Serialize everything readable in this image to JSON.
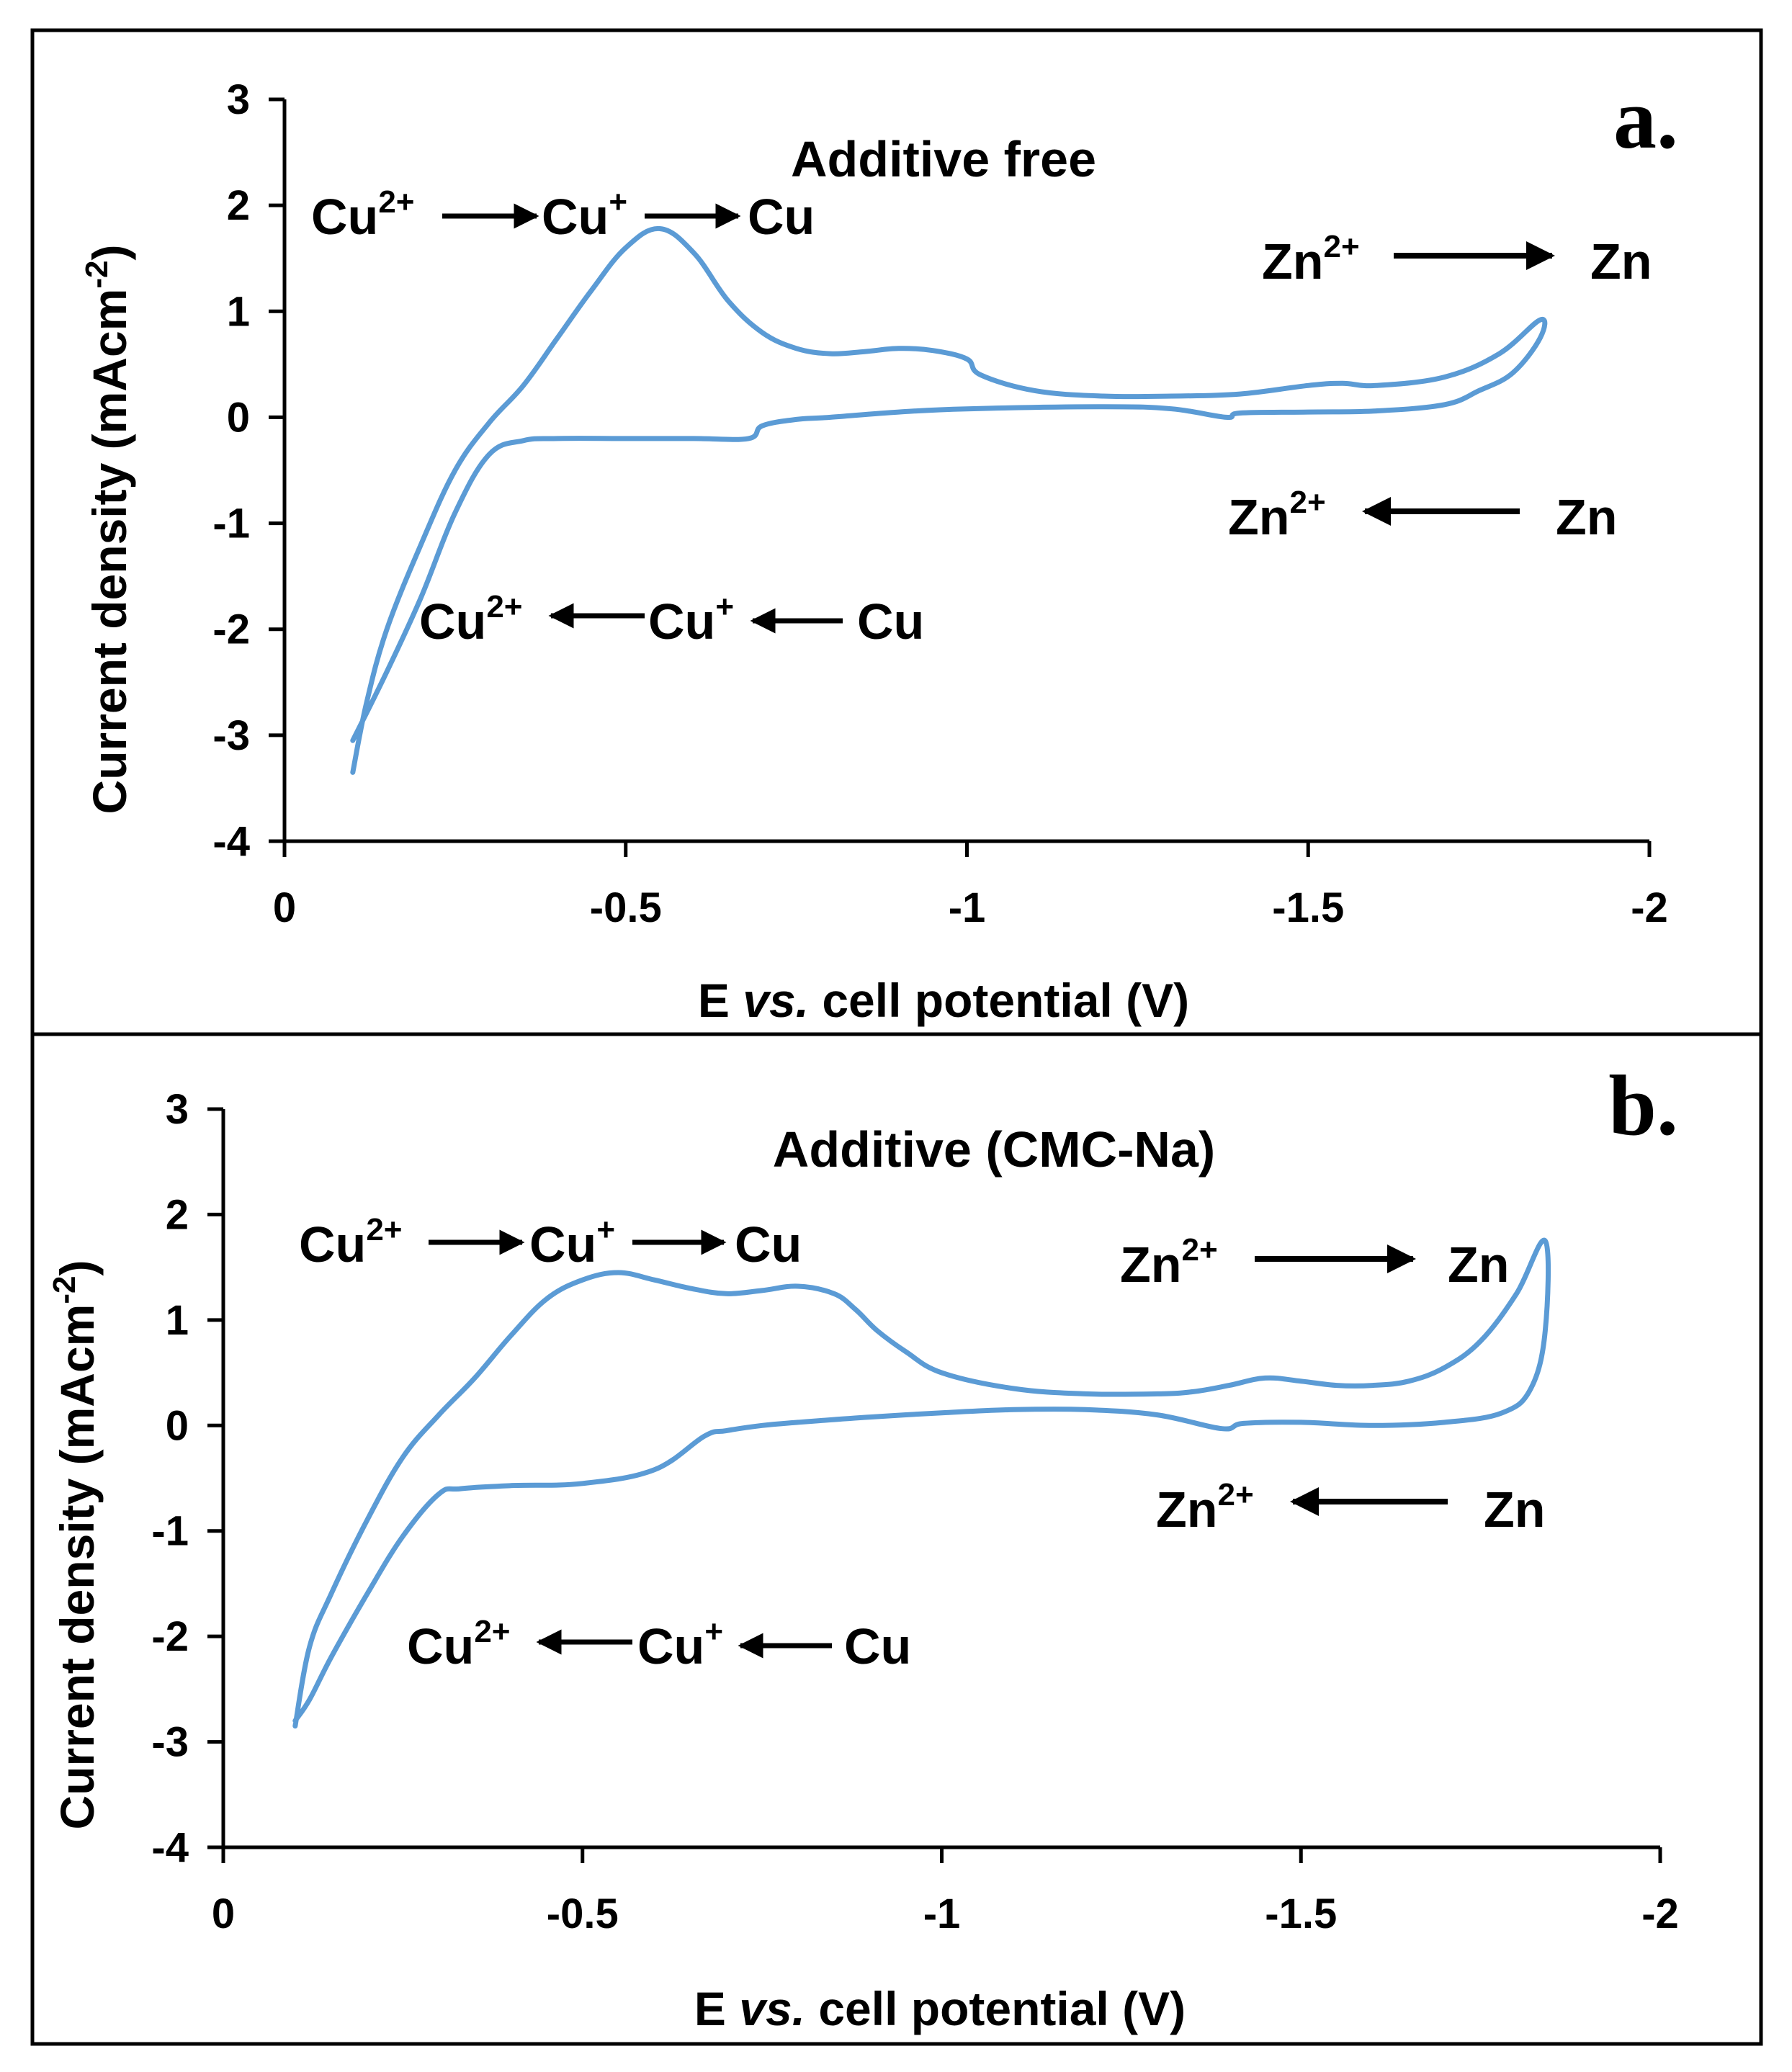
{
  "chart_data": [
    {
      "type": "line",
      "panel_label": "a.",
      "title": "Additive free",
      "xlabel_parts": [
        "E ",
        "vs.",
        " cell potential (V)"
      ],
      "ylabel": "Current density (mAcm",
      "ylabel_sup": "-2",
      "ylabel_close": ")",
      "xlim": [
        0,
        -2
      ],
      "ylim": [
        -4,
        3
      ],
      "x_ticks": [
        "0",
        "-0.5",
        "-1",
        "-1.5",
        "-2"
      ],
      "x_tick_values": [
        0,
        -0.5,
        -1,
        -1.5,
        -2
      ],
      "y_ticks": [
        "3",
        "2",
        "1",
        "0",
        "-1",
        "-2",
        "-3",
        "-4"
      ],
      "y_tick_values": [
        3,
        2,
        1,
        0,
        -1,
        -2,
        -3,
        -4
      ],
      "line_color": "#5b9bd5",
      "series": [
        {
          "x": [
            -0.1,
            -0.12,
            -0.15,
            -0.2,
            -0.25,
            -0.3,
            -0.35,
            -0.4,
            -0.45,
            -0.5,
            -0.55,
            -0.6,
            -0.65,
            -0.7,
            -0.75,
            -0.8,
            -0.85,
            -0.9,
            -0.95,
            -1.0,
            -1.02,
            -1.1,
            -1.2,
            -1.3,
            -1.4,
            -1.5,
            -1.55,
            -1.6,
            -1.7,
            -1.78,
            -1.84,
            -1.84,
            -1.8,
            -1.75,
            -1.7,
            -1.6,
            -1.5,
            -1.4,
            -1.38,
            -1.3,
            -1.2,
            -1.0,
            -0.9,
            -0.8,
            -0.75,
            -0.7,
            -0.68,
            -0.6,
            -0.5,
            -0.4,
            -0.35,
            -0.3,
            -0.25,
            -0.2,
            -0.15,
            -0.1
          ],
          "y": [
            -3.35,
            -2.7,
            -2.0,
            -1.2,
            -0.5,
            -0.05,
            0.3,
            0.75,
            1.2,
            1.6,
            1.78,
            1.55,
            1.1,
            0.8,
            0.65,
            0.6,
            0.62,
            0.65,
            0.63,
            0.55,
            0.4,
            0.25,
            0.2,
            0.2,
            0.22,
            0.3,
            0.32,
            0.3,
            0.38,
            0.6,
            0.92,
            0.75,
            0.42,
            0.25,
            0.12,
            0.06,
            0.05,
            0.04,
            0.0,
            0.08,
            0.1,
            0.08,
            0.05,
            0.0,
            -0.02,
            -0.08,
            -0.2,
            -0.2,
            -0.2,
            -0.2,
            -0.22,
            -0.35,
            -0.9,
            -1.7,
            -2.4,
            -3.05
          ]
        }
      ],
      "annotations": {
        "cu_forward": {
          "a": "Cu",
          "a_sup": "2+",
          "b": "Cu",
          "b_sup": "+",
          "c": "Cu"
        },
        "cu_reverse": {
          "a": "Cu",
          "a_sup": "2+",
          "b": "Cu",
          "b_sup": "+",
          "c": "Cu"
        },
        "zn_forward": {
          "a": "Zn",
          "a_sup": "2+",
          "c": "Zn"
        },
        "zn_reverse": {
          "a": "Zn",
          "a_sup": "2+",
          "c": "Zn"
        }
      }
    },
    {
      "type": "line",
      "panel_label": "b.",
      "title": "Additive (CMC-Na)",
      "xlabel_parts": [
        "E ",
        "vs.",
        " cell potential (V)"
      ],
      "ylabel": "Current density (mAcm",
      "ylabel_sup": "-2",
      "ylabel_close": ")",
      "xlim": [
        0,
        -2
      ],
      "ylim": [
        -4,
        3
      ],
      "x_ticks": [
        "0",
        "-0.5",
        "-1",
        "-1.5",
        "-2"
      ],
      "x_tick_values": [
        0,
        -0.5,
        -1,
        -1.5,
        -2
      ],
      "y_ticks": [
        "3",
        "2",
        "1",
        "0",
        "-1",
        "-2",
        "-3",
        "-4"
      ],
      "y_tick_values": [
        3,
        2,
        1,
        0,
        -1,
        -2,
        -3,
        -4
      ],
      "line_color": "#5b9bd5",
      "series": [
        {
          "x": [
            -0.1,
            -0.12,
            -0.15,
            -0.2,
            -0.25,
            -0.3,
            -0.35,
            -0.4,
            -0.45,
            -0.5,
            -0.55,
            -0.6,
            -0.65,
            -0.7,
            -0.75,
            -0.8,
            -0.85,
            -0.88,
            -0.91,
            -0.95,
            -1.0,
            -1.1,
            -1.2,
            -1.3,
            -1.35,
            -1.4,
            -1.45,
            -1.5,
            -1.55,
            -1.6,
            -1.65,
            -1.7,
            -1.75,
            -1.8,
            -1.84,
            -1.84,
            -1.82,
            -1.78,
            -1.7,
            -1.6,
            -1.5,
            -1.42,
            -1.39,
            -1.3,
            -1.2,
            -1.1,
            -1.0,
            -0.9,
            -0.8,
            -0.75,
            -0.7,
            -0.67,
            -0.6,
            -0.5,
            -0.4,
            -0.33,
            -0.3,
            -0.25,
            -0.2,
            -0.15,
            -0.12,
            -0.1
          ],
          "y": [
            -2.85,
            -2.1,
            -1.6,
            -0.9,
            -0.3,
            0.1,
            0.45,
            0.85,
            1.2,
            1.38,
            1.45,
            1.38,
            1.3,
            1.25,
            1.28,
            1.32,
            1.25,
            1.1,
            0.9,
            0.7,
            0.5,
            0.35,
            0.3,
            0.3,
            0.32,
            0.38,
            0.45,
            0.42,
            0.38,
            0.38,
            0.42,
            0.55,
            0.8,
            1.25,
            1.75,
            0.9,
            0.35,
            0.12,
            0.03,
            0.0,
            0.03,
            0.02,
            -0.03,
            0.1,
            0.15,
            0.15,
            0.12,
            0.08,
            0.03,
            0.0,
            -0.05,
            -0.1,
            -0.42,
            -0.55,
            -0.57,
            -0.6,
            -0.65,
            -1.05,
            -1.6,
            -2.2,
            -2.6,
            -2.8
          ]
        }
      ],
      "annotations": {
        "cu_forward": {
          "a": "Cu",
          "a_sup": "2+",
          "b": "Cu",
          "b_sup": "+",
          "c": "Cu"
        },
        "cu_reverse": {
          "a": "Cu",
          "a_sup": "2+",
          "b": "Cu",
          "b_sup": "+",
          "c": "Cu"
        },
        "zn_forward": {
          "a": "Zn",
          "a_sup": "2+",
          "c": "Zn"
        },
        "zn_reverse": {
          "a": "Zn",
          "a_sup": "2+",
          "c": "Zn"
        }
      }
    }
  ]
}
